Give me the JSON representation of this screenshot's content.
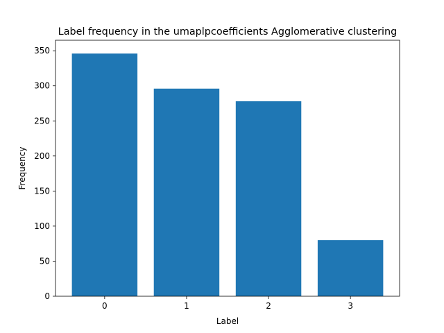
{
  "chart_data": {
    "type": "bar",
    "title": "Label frequency in the umaplpcoefficients Agglomerative clustering",
    "xlabel": "Label",
    "ylabel": "Frequency",
    "categories": [
      "0",
      "1",
      "2",
      "3"
    ],
    "values": [
      346,
      296,
      278,
      80
    ],
    "ylim": [
      0,
      365
    ],
    "yticks": [
      0,
      50,
      100,
      150,
      200,
      250,
      300,
      350
    ],
    "bar_color": "#1f77b4",
    "grid": false,
    "legend": "none"
  }
}
